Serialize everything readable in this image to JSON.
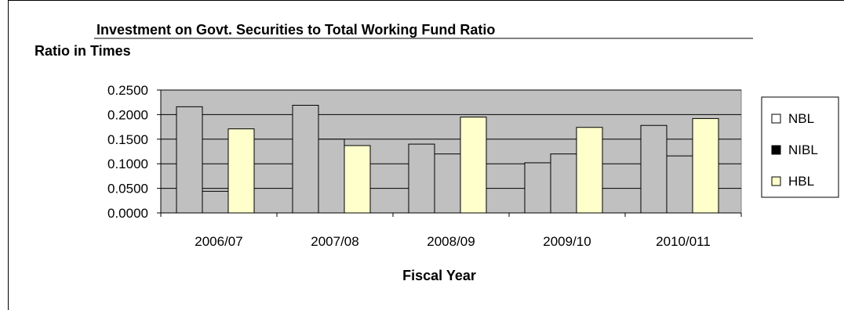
{
  "chart_data": {
    "type": "bar",
    "title": "Investment on Govt. Securities to Total Working Fund Ratio",
    "ylabel": "Ratio in Times",
    "xlabel": "Fiscal Year",
    "categories": [
      "2006/07",
      "2007/08",
      "2008/09",
      "2009/10",
      "2010/011"
    ],
    "ylim": [
      0,
      0.25
    ],
    "yticks": [
      "0.2500",
      "0.2000",
      "0.1500",
      "0.1000",
      "0.0500",
      "0.0000"
    ],
    "series": [
      {
        "name": "NBL",
        "values": [
          0.216,
          0.219,
          0.14,
          0.102,
          0.178
        ]
      },
      {
        "name": "NIBL",
        "values": [
          0.044,
          0.15,
          0.12,
          0.12,
          0.116
        ]
      },
      {
        "name": "HBL",
        "values": [
          0.171,
          0.137,
          0.195,
          0.174,
          0.192
        ]
      }
    ],
    "grid": true,
    "legend": "right"
  },
  "colors": {
    "plot_background": "#c0c0c0",
    "bar_fill": "#c0c0c0",
    "hbl_fill": "#ffffcc",
    "nbl_legend": "#ffffff",
    "nibl_legend": "#000000",
    "hbl_legend": "#ffffcc"
  }
}
